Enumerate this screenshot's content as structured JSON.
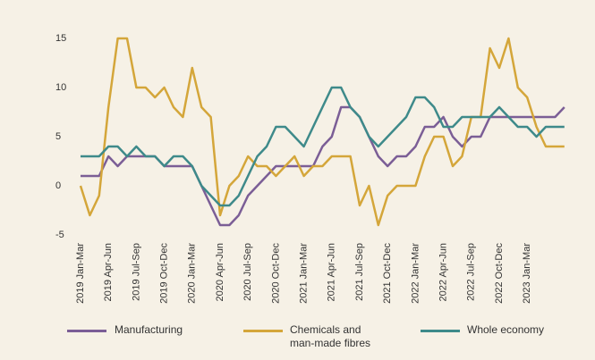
{
  "chart_data": {
    "type": "line",
    "categories": [
      "2019 Jan-Mar",
      null,
      null,
      "2019 Apr-Jun",
      null,
      null,
      "2019 Jul-Sep",
      null,
      null,
      "2019 Oct-Dec",
      null,
      null,
      "2020 Jan-Mar",
      null,
      null,
      "2020 Apr-Jun",
      null,
      null,
      "2020 Jul-Sep",
      null,
      null,
      "2020 Oct-Dec",
      null,
      null,
      "2021 Jan-Mar",
      null,
      null,
      "2021 Apr-Jun",
      null,
      null,
      "2021 Jul-Sep",
      null,
      null,
      "2021 Oct-Dec",
      null,
      null,
      "2022 Jan-Mar",
      null,
      null,
      "2022 Apr-Jun",
      null,
      null,
      "2022 Jul-Sep",
      null,
      null,
      "2022 Oct-Dec",
      null,
      null,
      "2023 Jan-Mar",
      null,
      null,
      null,
      null
    ],
    "series": [
      {
        "name": "Manufacturing",
        "color": "#7b5e96",
        "values": [
          1,
          1,
          1,
          3,
          2,
          3,
          3,
          3,
          3,
          2,
          2,
          2,
          2,
          0,
          -2,
          -4,
          -4,
          -3,
          -1,
          0,
          1,
          2,
          2,
          2,
          2,
          2,
          4,
          5,
          8,
          8,
          7,
          5,
          3,
          2,
          3,
          3,
          4,
          6,
          6,
          7,
          5,
          4,
          5,
          5,
          7,
          7,
          7,
          7,
          7,
          7,
          7,
          7,
          8
        ]
      },
      {
        "name": "Chemicals and man-made fibres",
        "color": "#d4a63a",
        "values": [
          0,
          -3,
          -1,
          8,
          15,
          15,
          10,
          10,
          9,
          10,
          8,
          7,
          12,
          8,
          7,
          -3,
          0,
          1,
          3,
          2,
          2,
          1,
          2,
          3,
          1,
          2,
          2,
          3,
          3,
          3,
          -2,
          0,
          -4,
          -1,
          0,
          0,
          0,
          3,
          5,
          5,
          2,
          3,
          7,
          7,
          14,
          12,
          15,
          10,
          9,
          6,
          4,
          4,
          4
        ]
      },
      {
        "name": "Whole economy",
        "color": "#3e8a8a",
        "values": [
          3,
          3,
          3,
          4,
          4,
          3,
          4,
          3,
          3,
          2,
          3,
          3,
          2,
          0,
          -1,
          -2,
          -2,
          -1,
          1,
          3,
          4,
          6,
          6,
          5,
          4,
          6,
          8,
          10,
          10,
          8,
          7,
          5,
          4,
          5,
          6,
          7,
          9,
          9,
          8,
          6,
          6,
          7,
          7,
          7,
          7,
          8,
          7,
          6,
          6,
          5,
          6,
          6,
          6
        ]
      }
    ],
    "ylim": [
      -5.5,
      16
    ],
    "yticks": [
      -5,
      0,
      5,
      10,
      15
    ]
  }
}
